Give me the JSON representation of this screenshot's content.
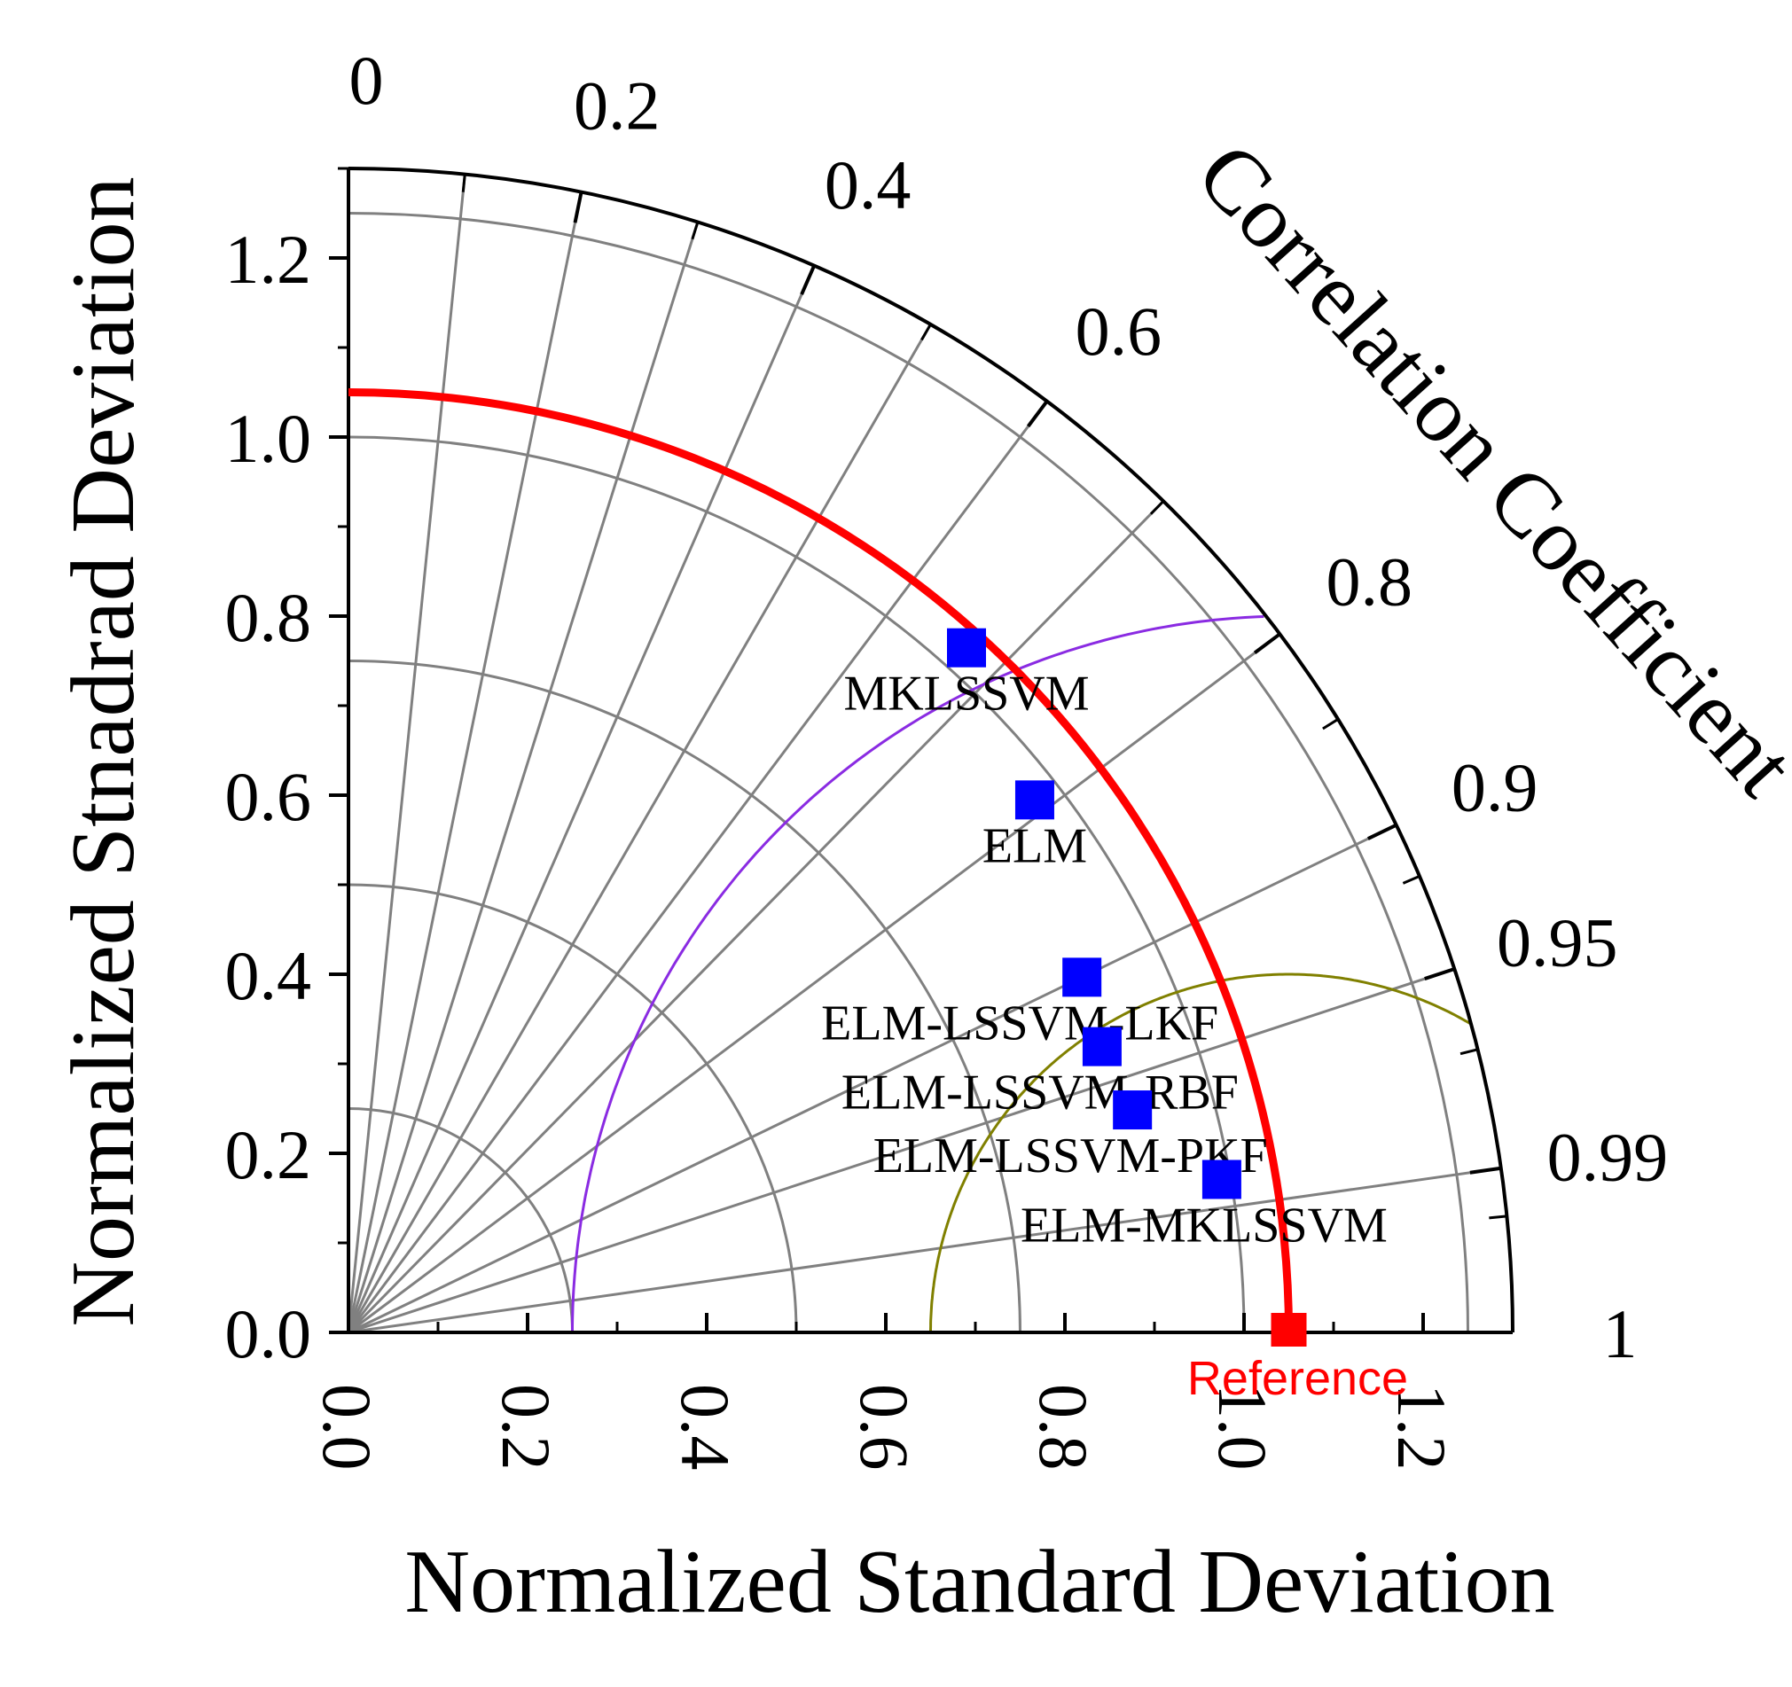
{
  "chart_data": {
    "type": "taylor",
    "xlabel": "Normalized Standard Deviation",
    "ylabel": "Normalized Stnadrad Deviation",
    "corr_label": "Correlation Coefficient",
    "std_range": [
      0,
      1.3
    ],
    "std_ticks": [
      "0.0",
      "0.2",
      "0.4",
      "0.6",
      "0.8",
      "1.0",
      "1.2"
    ],
    "corr_ticks": [
      "0",
      "0.2",
      "0.4",
      "0.6",
      "0.8",
      "0.9",
      "0.95",
      "0.99",
      "1"
    ],
    "corr_tick_values": [
      0,
      0.2,
      0.4,
      0.6,
      0.8,
      0.9,
      0.95,
      0.99,
      1
    ],
    "reference": {
      "label": "Reference",
      "std": 1.05,
      "corr": 1
    },
    "rms_circles": [
      {
        "radius": 0.8,
        "color": "#8a2be2"
      },
      {
        "radius": 0.4,
        "color": "#808000"
      }
    ],
    "points": [
      {
        "name": "MKLSSVM",
        "std": 1.03,
        "corr": 0.67
      },
      {
        "name": "ELM",
        "std": 0.97,
        "corr": 0.79
      },
      {
        "name": "ELM-LSSVM-LKF",
        "std": 0.91,
        "corr": 0.9
      },
      {
        "name": "ELM-LSSVM-RBF",
        "std": 0.9,
        "corr": 0.935
      },
      {
        "name": "ELM-LSSVM-PKF",
        "std": 0.91,
        "corr": 0.962
      },
      {
        "name": "ELM-MKLSSVM",
        "std": 0.99,
        "corr": 0.985
      }
    ],
    "colors": {
      "point": "#0000ff",
      "reference": "#ff0000",
      "grid": "#808080",
      "axis": "#000000"
    }
  }
}
